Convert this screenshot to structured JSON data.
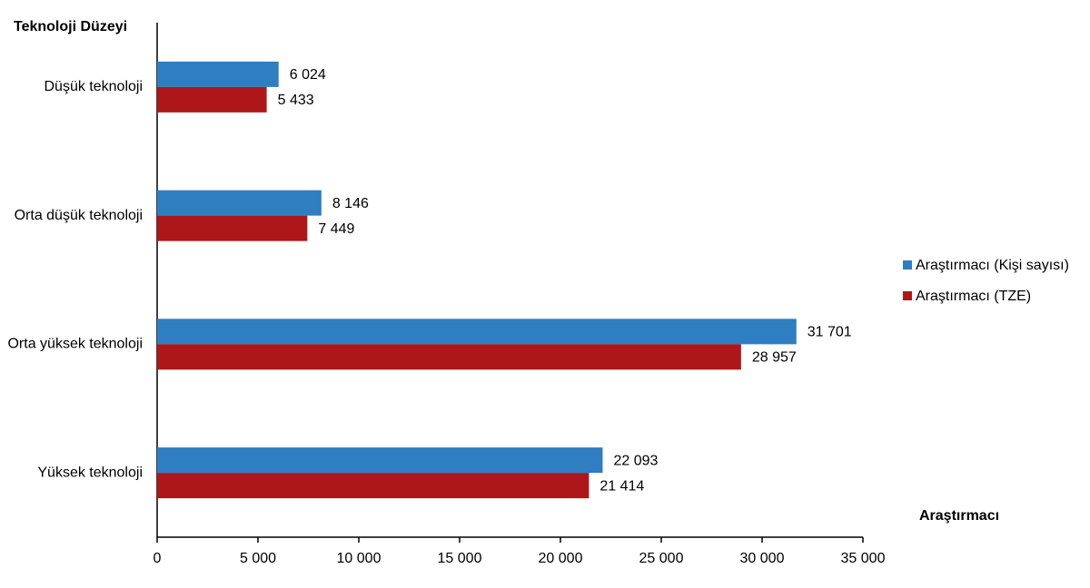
{
  "chart_data": {
    "type": "bar",
    "orientation": "horizontal",
    "y_axis_title": "Teknoloji Düzeyi",
    "x_axis_title": "Araştırmacı",
    "categories": [
      "Düşük teknoloji",
      "Orta düşük teknoloji",
      "Orta yüksek teknoloji",
      "Yüksek teknoloji"
    ],
    "series": [
      {
        "name": "Araştırmacı (Kişi sayısı)",
        "color": "#2e7ec1",
        "values": [
          6024,
          8146,
          31701,
          22093
        ],
        "value_labels": [
          "6 024",
          "8 146",
          "31 701",
          "22 093"
        ]
      },
      {
        "name": "Araştırmacı (TZE)",
        "color": "#ae1719",
        "values": [
          5433,
          7449,
          28957,
          21414
        ],
        "value_labels": [
          "5 433",
          "7 449",
          "28 957",
          "21 414"
        ]
      }
    ],
    "xlim": [
      0,
      35000
    ],
    "xticks": [
      0,
      {
        "value": 5000,
        "label": "5 000"
      },
      {
        "value": 10000,
        "label": "10 000"
      },
      {
        "value": 15000,
        "label": "15 000"
      },
      {
        "value": 20000,
        "label": "20 000"
      },
      {
        "value": 25000,
        "label": "25 000"
      },
      {
        "value": 30000,
        "label": "30 000"
      },
      {
        "value": 35000,
        "label": "35 000"
      }
    ],
    "legend": "right"
  }
}
